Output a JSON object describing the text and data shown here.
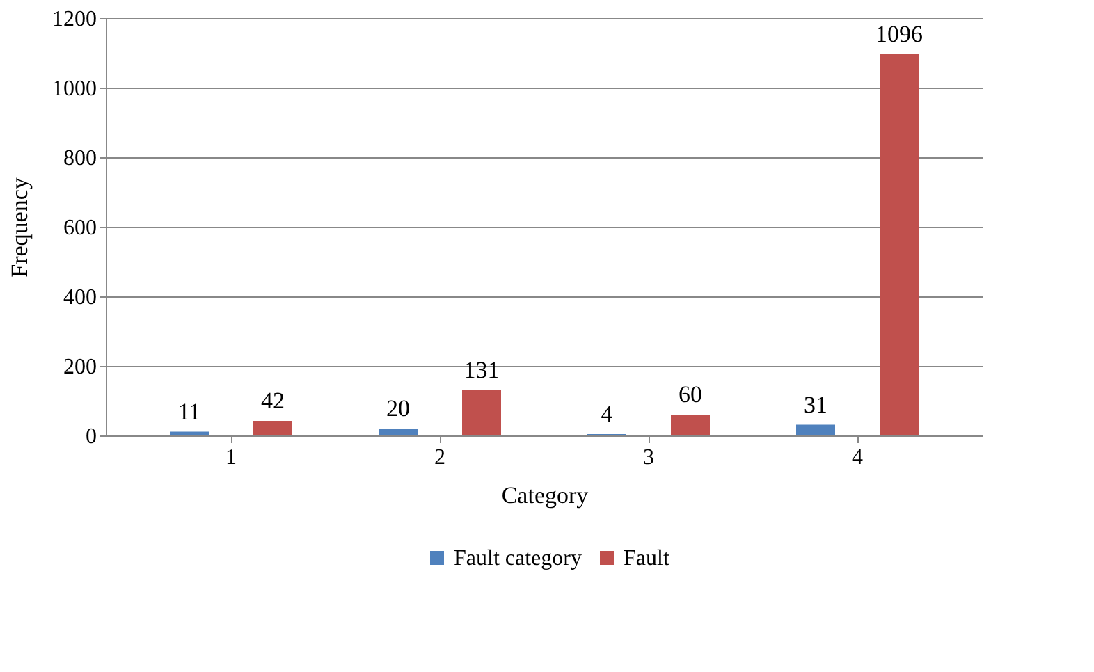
{
  "chart_data": {
    "type": "bar",
    "xlabel": "Category",
    "ylabel": "Frequency",
    "categories": [
      "1",
      "2",
      "3",
      "4"
    ],
    "series": [
      {
        "name": "Fault category",
        "color": "#4f81bd",
        "values": [
          11,
          20,
          4,
          31
        ]
      },
      {
        "name": "Fault",
        "color": "#c0504d",
        "values": [
          42,
          131,
          60,
          1096
        ]
      }
    ],
    "ylim": [
      0,
      1200
    ],
    "yticks": [
      0,
      200,
      400,
      600,
      800,
      1000,
      1200
    ],
    "grid": "y",
    "legend": "bottom",
    "data_labels": true
  }
}
